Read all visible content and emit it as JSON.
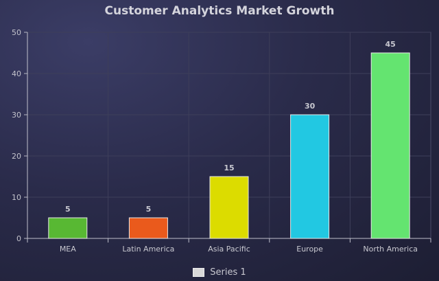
{
  "chart_data": {
    "type": "bar",
    "title": "Customer Analytics Market Growth",
    "categories": [
      "MEA",
      "Latin America",
      "Asia Pacific",
      "Europe",
      "North America"
    ],
    "series": [
      {
        "name": "Series 1",
        "values": [
          5,
          5,
          15,
          30,
          45
        ]
      }
    ],
    "bar_colors": [
      "#58b833",
      "#ea5a1c",
      "#dcdc00",
      "#22c8e2",
      "#64e470"
    ],
    "xlabel": "",
    "ylabel": "",
    "ylim": [
      0,
      50
    ],
    "yticks": [
      0,
      10,
      20,
      30,
      40,
      50
    ],
    "grid": true,
    "legend_position": "bottom"
  }
}
